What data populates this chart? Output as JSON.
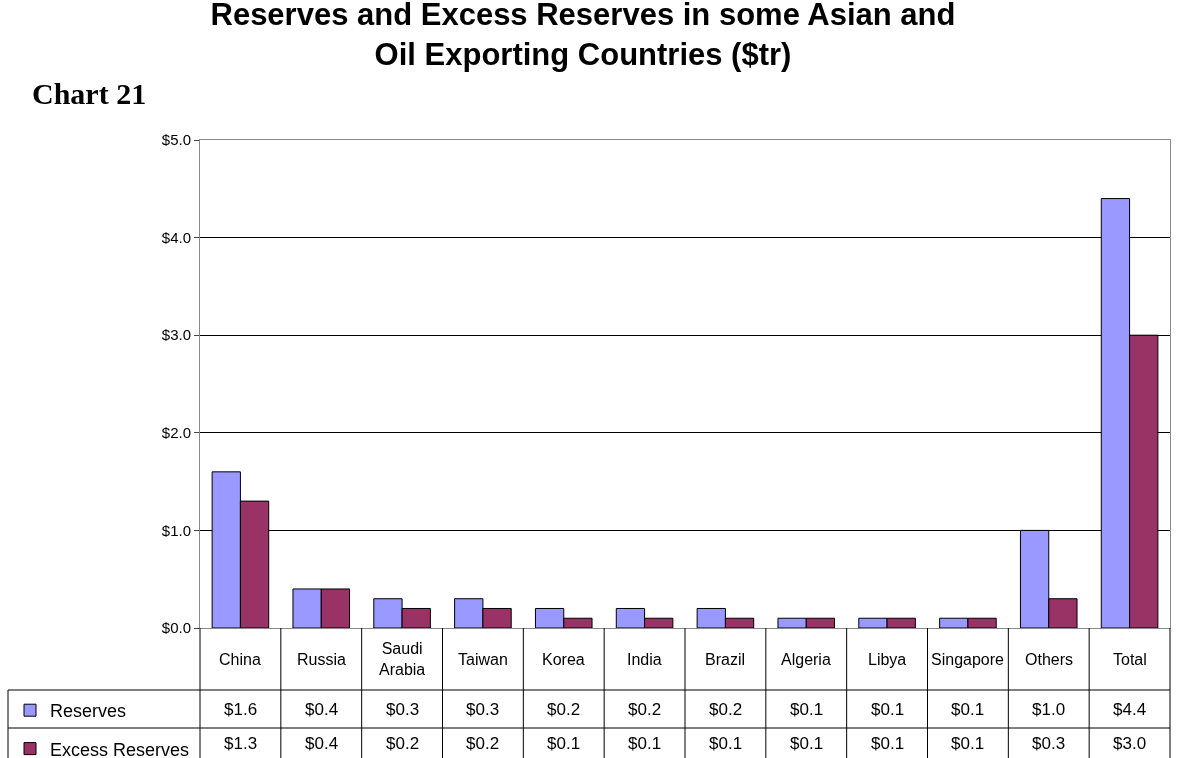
{
  "chart_data": {
    "type": "bar",
    "title": "Reserves and Excess Reserves in some Asian and Oil Exporting Countries ($tr)",
    "annotations": [
      "Chart 21"
    ],
    "categories": [
      "China",
      "Russia",
      "Saudi Arabia",
      "Taiwan",
      "Korea",
      "India",
      "Brazil",
      "Algeria",
      "Libya",
      "Singapore",
      "Others",
      "Total"
    ],
    "series": [
      {
        "name": "Reserves",
        "color": "#9999ff",
        "values": [
          1.6,
          0.4,
          0.3,
          0.3,
          0.2,
          0.2,
          0.2,
          0.1,
          0.1,
          0.1,
          1.0,
          4.4
        ],
        "value_labels": [
          "$1.6",
          "$0.4",
          "$0.3",
          "$0.3",
          "$0.2",
          "$0.2",
          "$0.2",
          "$0.1",
          "$0.1",
          "$0.1",
          "$1.0",
          "$4.4"
        ]
      },
      {
        "name": "Excess Reserves",
        "color": "#993366",
        "values": [
          1.3,
          0.4,
          0.2,
          0.2,
          0.1,
          0.1,
          0.1,
          0.1,
          0.1,
          0.1,
          0.3,
          3.0
        ],
        "value_labels": [
          "$1.3",
          "$0.4",
          "$0.2",
          "$0.2",
          "$0.1",
          "$0.1",
          "$0.1",
          "$0.1",
          "$0.1",
          "$0.1",
          "$0.3",
          "$3.0"
        ]
      }
    ],
    "ylim": [
      0,
      5
    ],
    "yticks": [
      {
        "value": 0,
        "label": "$0.0"
      },
      {
        "value": 1,
        "label": "$1.0"
      },
      {
        "value": 2,
        "label": "$2.0"
      },
      {
        "value": 3,
        "label": "$3.0"
      },
      {
        "value": 4,
        "label": "$4.0"
      },
      {
        "value": 5,
        "label": "$5.0"
      }
    ],
    "grid": "y",
    "legend": "bottom left"
  }
}
